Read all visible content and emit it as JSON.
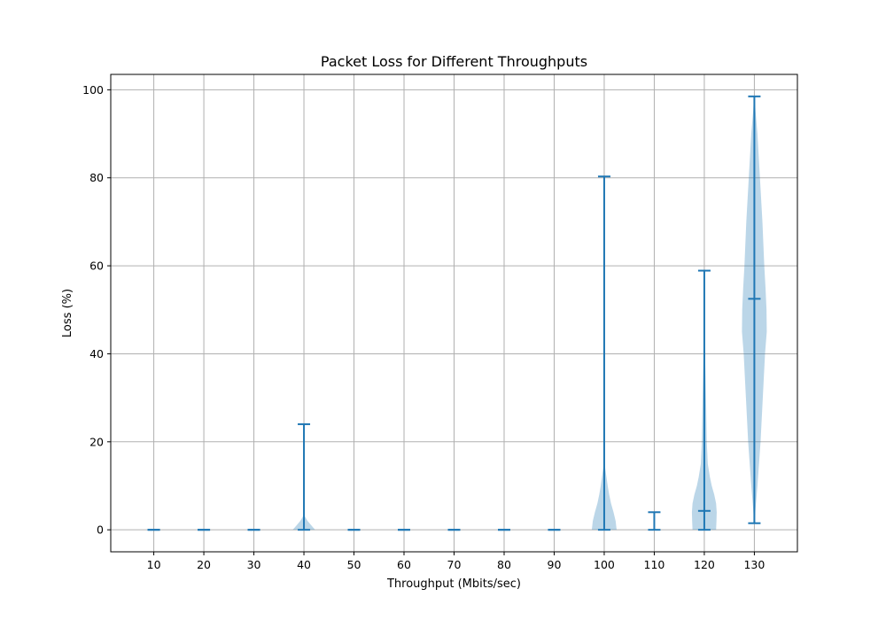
{
  "chart_data": {
    "type": "violin",
    "title": "Packet Loss for Different Throughputs",
    "xlabel": "Throughput (Mbits/sec)",
    "ylabel": "Loss (%)",
    "x_ticks": [
      10,
      20,
      30,
      40,
      50,
      60,
      70,
      80,
      90,
      100,
      110,
      120,
      130
    ],
    "y_ticks": [
      0,
      20,
      40,
      60,
      80,
      100
    ],
    "xlim": [
      1.4,
      138.6
    ],
    "ylim": [
      -5,
      103.5
    ],
    "grid": true,
    "colors": {
      "line": "#1f77b4",
      "fill": "#1f77b4",
      "grid": "#b0b0b0"
    },
    "violins": [
      {
        "x": 10,
        "min": 0,
        "median": 0,
        "max": 0,
        "density": []
      },
      {
        "x": 20,
        "min": 0,
        "median": 0,
        "max": 0,
        "density": []
      },
      {
        "x": 30,
        "min": 0,
        "median": 0,
        "max": 0,
        "density": []
      },
      {
        "x": 40,
        "min": 0,
        "median": 0,
        "max": 24,
        "density": [
          [
            0,
            0.9
          ],
          [
            1,
            0.6
          ],
          [
            2,
            0.3
          ],
          [
            2.8,
            0.12
          ],
          [
            3.5,
            0.0
          ]
        ]
      },
      {
        "x": 50,
        "min": 0,
        "median": 0,
        "max": 0,
        "density": []
      },
      {
        "x": 60,
        "min": 0,
        "median": 0,
        "max": 0,
        "density": []
      },
      {
        "x": 70,
        "min": 0,
        "median": 0,
        "max": 0,
        "density": []
      },
      {
        "x": 80,
        "min": 0,
        "median": 0,
        "max": 0,
        "density": []
      },
      {
        "x": 90,
        "min": 0,
        "median": 0,
        "max": 0,
        "density": []
      },
      {
        "x": 100,
        "min": 0,
        "median": 0,
        "max": 80.3,
        "density": [
          [
            0,
            1.0
          ],
          [
            2,
            0.92
          ],
          [
            4,
            0.75
          ],
          [
            6,
            0.55
          ],
          [
            8,
            0.4
          ],
          [
            10,
            0.28
          ],
          [
            12,
            0.18
          ],
          [
            14,
            0.08
          ],
          [
            16,
            0.03
          ],
          [
            20,
            0.01
          ],
          [
            30,
            0.0
          ]
        ]
      },
      {
        "x": 110,
        "min": 0,
        "median": 0,
        "max": 4,
        "density": []
      },
      {
        "x": 120,
        "min": 0,
        "median": 4.3,
        "max": 58.9,
        "density": [
          [
            0,
            0.95
          ],
          [
            2,
            0.98
          ],
          [
            4,
            1.0
          ],
          [
            6,
            0.95
          ],
          [
            8,
            0.8
          ],
          [
            10,
            0.6
          ],
          [
            12,
            0.45
          ],
          [
            15,
            0.28
          ],
          [
            20,
            0.2
          ],
          [
            28,
            0.15
          ],
          [
            35,
            0.1
          ],
          [
            42,
            0.04
          ],
          [
            50,
            0.01
          ],
          [
            58.9,
            0.0
          ]
        ]
      },
      {
        "x": 130,
        "min": 1.5,
        "median": 52.5,
        "max": 98.5,
        "density": [
          [
            1.5,
            0.02
          ],
          [
            5,
            0.1
          ],
          [
            10,
            0.25
          ],
          [
            20,
            0.5
          ],
          [
            30,
            0.68
          ],
          [
            40,
            0.86
          ],
          [
            45,
            1.0
          ],
          [
            50,
            0.98
          ],
          [
            55,
            0.9
          ],
          [
            60,
            0.8
          ],
          [
            70,
            0.65
          ],
          [
            80,
            0.45
          ],
          [
            90,
            0.25
          ],
          [
            95,
            0.1
          ],
          [
            98.5,
            0.02
          ]
        ]
      }
    ]
  }
}
